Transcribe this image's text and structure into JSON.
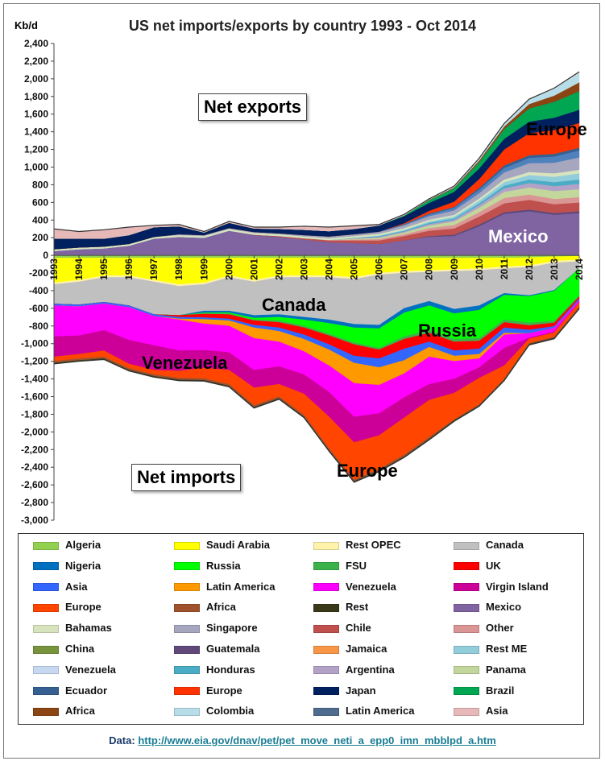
{
  "chart_data": {
    "type": "area",
    "title": "US net imports/exports  by country 1993 - Oct 2014",
    "ylabel": "Kb/d",
    "ylim": [
      -3000,
      2400
    ],
    "yticks": [
      2400,
      2200,
      2000,
      1800,
      1600,
      1400,
      1200,
      1000,
      800,
      600,
      400,
      200,
      0,
      -200,
      -400,
      -600,
      -800,
      -1000,
      -1200,
      -1400,
      -1600,
      -1800,
      -2000,
      -2200,
      -2400,
      -2600,
      -2800,
      -3000
    ],
    "x": [
      "1993",
      "1994",
      "1995",
      "1996",
      "1997",
      "1998",
      "1999",
      "2000",
      "2001",
      "2002",
      "2003",
      "2004",
      "2005",
      "2006",
      "2007",
      "2008",
      "2009",
      "2010",
      "2011",
      "2012",
      "2013",
      "2014"
    ],
    "annotations": {
      "net_exports": "Net exports",
      "net_imports": "Net imports",
      "canada": "Canada",
      "russia": "Russia",
      "venezuela": "Venezuela",
      "europe_top": "Europe",
      "europe_bottom": "Europe",
      "mexico": "Mexico"
    },
    "exports_series": [
      {
        "name": "Mexico",
        "color": "#8064a2",
        "values": [
          50,
          70,
          80,
          110,
          190,
          210,
          200,
          280,
          230,
          210,
          180,
          150,
          140,
          130,
          170,
          210,
          220,
          330,
          470,
          500,
          460,
          480
        ]
      },
      {
        "name": "Guatemala",
        "color": "#60497a",
        "values": [
          0,
          0,
          0,
          0,
          0,
          0,
          0,
          0,
          0,
          0,
          0,
          0,
          0,
          0,
          0,
          10,
          15,
          20,
          20,
          20,
          20,
          20
        ]
      },
      {
        "name": "Chile",
        "color": "#c0504d",
        "values": [
          0,
          0,
          0,
          0,
          0,
          0,
          0,
          0,
          5,
          10,
          15,
          20,
          30,
          40,
          50,
          60,
          70,
          90,
          100,
          110,
          100,
          100
        ]
      },
      {
        "name": "Other",
        "color": "#d99694",
        "values": [
          0,
          0,
          0,
          0,
          0,
          0,
          0,
          0,
          0,
          0,
          0,
          5,
          10,
          15,
          20,
          30,
          40,
          50,
          60,
          60,
          60,
          60
        ]
      },
      {
        "name": "Panama",
        "color": "#c3d69b",
        "values": [
          0,
          0,
          0,
          0,
          0,
          0,
          0,
          0,
          0,
          0,
          0,
          0,
          10,
          15,
          20,
          30,
          40,
          50,
          70,
          80,
          90,
          90
        ]
      },
      {
        "name": "Argentina",
        "color": "#b3a2c7",
        "values": [
          0,
          0,
          0,
          0,
          0,
          0,
          0,
          0,
          0,
          0,
          0,
          0,
          5,
          10,
          10,
          15,
          20,
          30,
          40,
          50,
          55,
          60
        ]
      },
      {
        "name": "Honduras",
        "color": "#4bacc6",
        "values": [
          0,
          0,
          0,
          0,
          0,
          0,
          0,
          0,
          0,
          0,
          0,
          0,
          5,
          10,
          10,
          15,
          15,
          20,
          30,
          40,
          45,
          50
        ]
      },
      {
        "name": "Rest ME",
        "color": "#92cddc",
        "values": [
          0,
          0,
          0,
          0,
          0,
          0,
          0,
          0,
          0,
          0,
          0,
          0,
          0,
          5,
          10,
          15,
          20,
          30,
          40,
          50,
          60,
          70
        ]
      },
      {
        "name": "Bahamas",
        "color": "#d7e4bd",
        "values": [
          20,
          20,
          20,
          20,
          20,
          20,
          20,
          20,
          20,
          20,
          20,
          20,
          20,
          20,
          20,
          20,
          20,
          25,
          30,
          35,
          40,
          40
        ]
      },
      {
        "name": "Singapore",
        "color": "#a6a6bf",
        "values": [
          0,
          0,
          0,
          0,
          0,
          10,
          10,
          10,
          10,
          10,
          15,
          20,
          20,
          20,
          30,
          40,
          50,
          60,
          80,
          100,
          120,
          140
        ]
      },
      {
        "name": "Latin America",
        "color": "#4f81bd",
        "values": [
          0,
          0,
          0,
          0,
          0,
          0,
          0,
          0,
          0,
          0,
          0,
          0,
          0,
          5,
          10,
          20,
          30,
          40,
          50,
          60,
          70,
          80
        ]
      },
      {
        "name": "Ecuador",
        "color": "#376092",
        "values": [
          0,
          0,
          0,
          0,
          0,
          0,
          0,
          0,
          0,
          0,
          0,
          0,
          0,
          0,
          5,
          10,
          10,
          20,
          30,
          30,
          30,
          30
        ]
      },
      {
        "name": "Europe",
        "color": "#ff3300",
        "values": [
          0,
          0,
          0,
          0,
          0,
          0,
          0,
          0,
          0,
          0,
          0,
          0,
          0,
          0,
          10,
          30,
          60,
          100,
          180,
          250,
          270,
          280
        ]
      },
      {
        "name": "Japan",
        "color": "#002060",
        "values": [
          120,
          100,
          90,
          100,
          110,
          90,
          30,
          60,
          40,
          50,
          60,
          60,
          60,
          70,
          80,
          90,
          110,
          120,
          120,
          130,
          140,
          150
        ]
      },
      {
        "name": "Brazil",
        "color": "#00a651",
        "values": [
          0,
          0,
          0,
          0,
          0,
          0,
          0,
          0,
          0,
          0,
          0,
          0,
          0,
          0,
          10,
          30,
          40,
          70,
          110,
          150,
          180,
          210
        ]
      },
      {
        "name": "Africa",
        "color": "#8b4513",
        "values": [
          0,
          0,
          0,
          0,
          0,
          0,
          0,
          0,
          0,
          0,
          0,
          0,
          0,
          0,
          0,
          5,
          10,
          20,
          30,
          50,
          70,
          100
        ]
      },
      {
        "name": "Colombia",
        "color": "#b7dde8",
        "values": [
          0,
          0,
          0,
          0,
          0,
          0,
          0,
          0,
          0,
          0,
          0,
          0,
          0,
          0,
          0,
          5,
          10,
          20,
          30,
          50,
          80,
          110
        ]
      },
      {
        "name": "Asia",
        "color": "#e6b9b8",
        "values": [
          110,
          80,
          100,
          90,
          20,
          20,
          10,
          15,
          15,
          20,
          40,
          45,
          35,
          10,
          10,
          5,
          5,
          5,
          5,
          5,
          5,
          10
        ]
      }
    ],
    "imports_series": [
      {
        "name": "Algeria",
        "color": "#92d050",
        "values": [
          -30,
          -30,
          -30,
          -30,
          -30,
          -30,
          -30,
          -30,
          -30,
          -30,
          -30,
          -30,
          -30,
          -30,
          -30,
          -30,
          -30,
          -30,
          -30,
          -25,
          -15,
          -10
        ]
      },
      {
        "name": "Saudi Arabia",
        "color": "#ffff00",
        "values": [
          -280,
          -250,
          -200,
          -200,
          -250,
          -300,
          -280,
          -200,
          -250,
          -200,
          -200,
          -200,
          -220,
          -170,
          -150,
          -140,
          -130,
          -120,
          -100,
          -90,
          -50,
          -40
        ]
      },
      {
        "name": "Rest OPEC",
        "color": "#fff2aa",
        "values": [
          -20,
          -20,
          -20,
          -20,
          -20,
          -20,
          -20,
          -20,
          -20,
          -20,
          -20,
          -20,
          -20,
          -20,
          -20,
          -20,
          -20,
          -20,
          -20,
          -20,
          -20,
          -20
        ]
      },
      {
        "name": "Canada",
        "color": "#c0c0c0",
        "values": [
          -220,
          -260,
          -280,
          -320,
          -370,
          -330,
          -300,
          -380,
          -380,
          -420,
          -450,
          -480,
          -510,
          -570,
          -400,
          -330,
          -430,
          -400,
          -280,
          -320,
          -310,
          -80
        ]
      },
      {
        "name": "Nigeria",
        "color": "#0070c0",
        "values": [
          0,
          0,
          0,
          0,
          0,
          0,
          -20,
          -20,
          -30,
          -30,
          -30,
          -40,
          -40,
          -40,
          -50,
          -50,
          -50,
          -50,
          -20,
          -10,
          -10,
          0
        ]
      },
      {
        "name": "Russia",
        "color": "#00ff00",
        "values": [
          0,
          0,
          0,
          0,
          0,
          0,
          -5,
          -10,
          -20,
          -40,
          -70,
          -120,
          -170,
          -220,
          -270,
          -280,
          -290,
          -320,
          -280,
          -300,
          -340,
          -300
        ]
      },
      {
        "name": "FSU",
        "color": "#3cb34a",
        "values": [
          0,
          0,
          0,
          0,
          0,
          0,
          -10,
          -10,
          -10,
          -20,
          -20,
          -20,
          -20,
          -20,
          -30,
          -30,
          -30,
          -30,
          -30,
          -30,
          -20,
          -20
        ]
      },
      {
        "name": "UK",
        "color": "#ff0000",
        "values": [
          0,
          0,
          0,
          0,
          0,
          -20,
          -40,
          -50,
          -50,
          -60,
          -80,
          -100,
          -130,
          -100,
          -110,
          -100,
          -100,
          -90,
          -60,
          -50,
          -40,
          -20
        ]
      },
      {
        "name": "Asia",
        "color": "#3366ff",
        "values": [
          -20,
          -20,
          -20,
          -20,
          -20,
          -20,
          -20,
          -20,
          -30,
          -40,
          -50,
          -60,
          -80,
          -100,
          -130,
          -60,
          -60,
          -60,
          -60,
          -40,
          -20,
          -20
        ]
      },
      {
        "name": "Latin America",
        "color": "#ff9900",
        "values": [
          0,
          0,
          0,
          0,
          0,
          -10,
          -50,
          -60,
          -120,
          -120,
          -140,
          -180,
          -230,
          -200,
          -150,
          -110,
          -60,
          -50,
          -20,
          0,
          0,
          0
        ]
      },
      {
        "name": "Venezuela",
        "color": "#ff00ff",
        "values": [
          -350,
          -330,
          -300,
          -370,
          -330,
          -350,
          -300,
          -300,
          -360,
          -280,
          -260,
          -300,
          -380,
          -320,
          -270,
          -310,
          -200,
          -100,
          -150,
          -50,
          -40,
          -20
        ]
      },
      {
        "name": "Virgin Island",
        "color": "#cc0099",
        "values": [
          -230,
          -210,
          -230,
          -270,
          -280,
          -230,
          -200,
          -200,
          -200,
          -200,
          -220,
          -280,
          -290,
          -250,
          -230,
          -180,
          -160,
          -120,
          -200,
          -10,
          -10,
          -5
        ]
      },
      {
        "name": "Europe",
        "color": "#ff4500",
        "values": [
          -50,
          -50,
          -70,
          -50,
          -50,
          -80,
          -120,
          -160,
          -200,
          -140,
          -240,
          -360,
          -420,
          -380,
          -420,
          -420,
          -300,
          -300,
          -150,
          -50,
          -50,
          -50
        ]
      },
      {
        "name": "Africa",
        "color": "#a0522d",
        "values": [
          -20,
          -20,
          -20,
          -20,
          -20,
          -20,
          -20,
          -20,
          -20,
          -20,
          -20,
          -20,
          -20,
          -20,
          -20,
          -20,
          -10,
          -10,
          -10,
          -10,
          -10,
          -10
        ]
      },
      {
        "name": "Rest",
        "color": "#3a3a1a",
        "values": [
          -10,
          -10,
          -10,
          -10,
          -10,
          -10,
          -10,
          -10,
          -10,
          -10,
          -10,
          -10,
          -10,
          -10,
          -10,
          -10,
          -10,
          -10,
          -10,
          -10,
          -10,
          -10
        ]
      }
    ],
    "legend": {
      "placement": "bottom",
      "entries": [
        {
          "name": "Algeria",
          "color": "#92d050"
        },
        {
          "name": "Saudi Arabia",
          "color": "#ffff00"
        },
        {
          "name": "Rest OPEC",
          "color": "#fff2aa"
        },
        {
          "name": "Canada",
          "color": "#c0c0c0"
        },
        {
          "name": "Nigeria",
          "color": "#0070c0"
        },
        {
          "name": "Russia",
          "color": "#00ff00"
        },
        {
          "name": "FSU",
          "color": "#3cb34a"
        },
        {
          "name": "UK",
          "color": "#ff0000"
        },
        {
          "name": "Asia",
          "color": "#3366ff"
        },
        {
          "name": "Latin America",
          "color": "#ff9900"
        },
        {
          "name": "Venezuela",
          "color": "#ff00ff"
        },
        {
          "name": "Virgin Island",
          "color": "#cc0099"
        },
        {
          "name": "Europe",
          "color": "#ff4500"
        },
        {
          "name": "Africa",
          "color": "#a0522d"
        },
        {
          "name": "Rest",
          "color": "#3a3a1a"
        },
        {
          "name": "Mexico",
          "color": "#8064a2"
        },
        {
          "name": "Bahamas",
          "color": "#d7e4bd"
        },
        {
          "name": "Singapore",
          "color": "#a6a6bf"
        },
        {
          "name": "Chile",
          "color": "#c0504d"
        },
        {
          "name": "Other",
          "color": "#d99694"
        },
        {
          "name": "China",
          "color": "#77933c"
        },
        {
          "name": "Guatemala",
          "color": "#60497a"
        },
        {
          "name": "Jamaica",
          "color": "#f79646"
        },
        {
          "name": "Rest ME",
          "color": "#92cddc"
        },
        {
          "name": "Venezuela",
          "color": "#c6d9f1"
        },
        {
          "name": "Honduras",
          "color": "#4bacc6"
        },
        {
          "name": "Argentina",
          "color": "#b3a2c7"
        },
        {
          "name": "Panama",
          "color": "#c3d69b"
        },
        {
          "name": "Ecuador",
          "color": "#376092"
        },
        {
          "name": "Europe",
          "color": "#ff3300"
        },
        {
          "name": "Japan",
          "color": "#002060"
        },
        {
          "name": "Brazil",
          "color": "#00a651"
        },
        {
          "name": "Africa",
          "color": "#8b4513"
        },
        {
          "name": "Colombia",
          "color": "#b7dde8"
        },
        {
          "name": "Latin America",
          "color": "#4f6b8f"
        },
        {
          "name": "Asia",
          "color": "#e6b9b8"
        }
      ]
    },
    "source_label": "Data:",
    "source_url": "http://www.eia.gov/dnav/pet/pet_move_neti_a_epp0_imn_mbblpd_a.htm"
  }
}
